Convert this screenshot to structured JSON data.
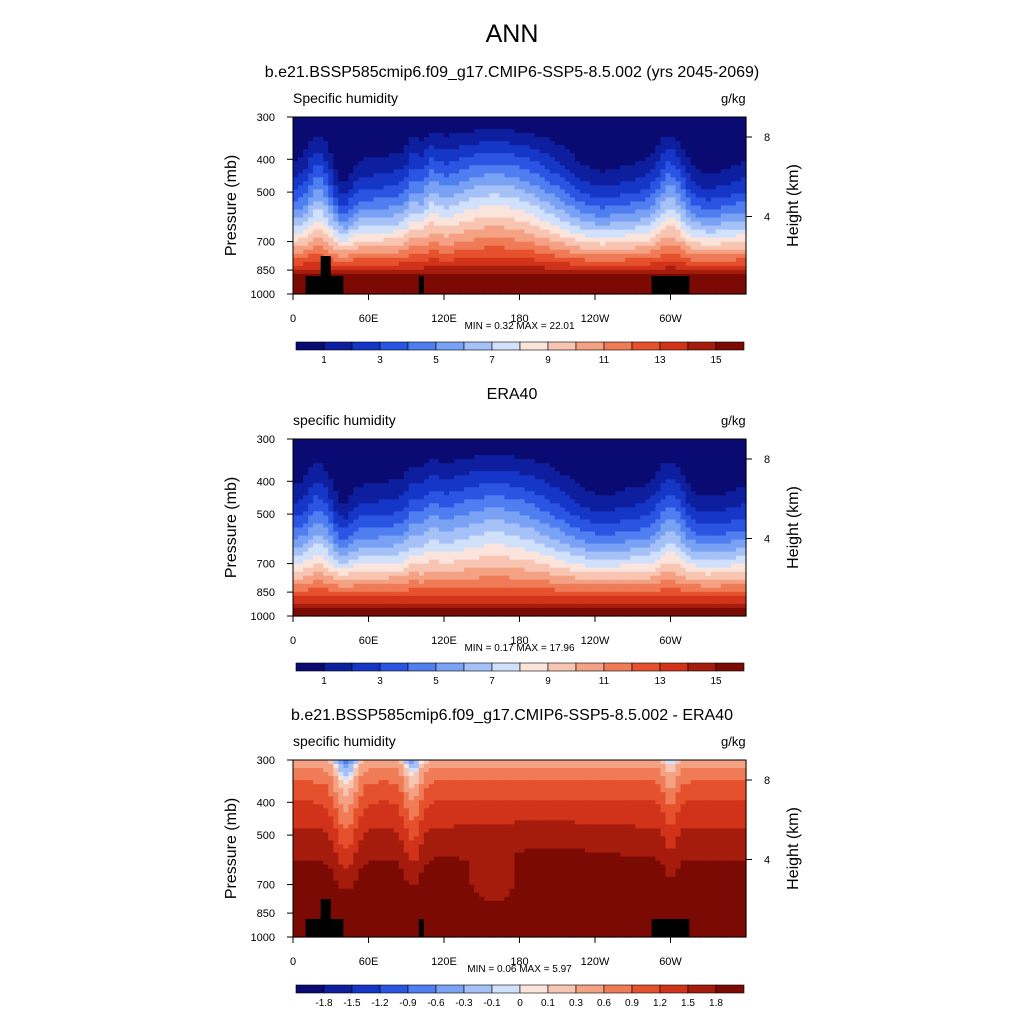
{
  "figure": {
    "title": "ANN",
    "colors": {
      "humidity_scale": [
        "#0a0a73",
        "#0d1f9e",
        "#1536c7",
        "#2a55e3",
        "#4f7ef0",
        "#7aa2f4",
        "#a5c1f8",
        "#d2e1fb",
        "#fbe4dc",
        "#f8c5b2",
        "#f4a184",
        "#f07b57",
        "#e6512d",
        "#d0331a",
        "#a61c0c",
        "#7a0a03"
      ],
      "diff_scale": [
        "#0a0a73",
        "#0d1f9e",
        "#1536c7",
        "#2a55e3",
        "#4f7ef0",
        "#7aa2f4",
        "#a5c1f8",
        "#d2e1fb",
        "#fbe4dc",
        "#f8c5b2",
        "#f4a184",
        "#f07b57",
        "#e6512d",
        "#d0331a",
        "#a61c0c",
        "#7a0a03"
      ],
      "missing": "#000000"
    }
  },
  "chart_data": [
    {
      "type": "heatmap",
      "title": "b.e21.BSSP585cmip6.f09_g17.CMIP6-SSP5-8.5.002 (yrs 2045-2069)",
      "left_string": "Specific humidity",
      "right_string": "g/kg",
      "ylabel": "Pressure (mb)",
      "y2label": "Height (km)",
      "x_ticks": [
        "0",
        "60E",
        "120E",
        "180",
        "120W",
        "60W"
      ],
      "x_tick_values": [
        0,
        60,
        120,
        180,
        240,
        300
      ],
      "xlim": [
        0,
        360
      ],
      "y_ticks": [
        "300",
        "400",
        "500",
        "700",
        "850",
        "1000"
      ],
      "y_tick_values": [
        300,
        400,
        500,
        700,
        850,
        1000
      ],
      "ylim": [
        300,
        1000
      ],
      "y_log_scale": true,
      "y2_ticks": [
        "8",
        "4"
      ],
      "y2_tick_values": [
        8,
        4
      ],
      "stats": "MIN =   0.32  MAX =  22.01",
      "min": 0.32,
      "max": 22.01,
      "colorbar_labels": [
        "1",
        "3",
        "5",
        "7",
        "9",
        "11",
        "13",
        "15"
      ],
      "contour_levels": [
        1,
        2,
        3,
        4,
        5,
        6,
        7,
        8,
        9,
        10,
        11,
        12,
        13,
        14,
        15
      ],
      "missing_data_regions_lon_range": [
        [
          10,
          40
        ],
        [
          100,
          104
        ],
        [
          285,
          315
        ]
      ]
    },
    {
      "type": "heatmap",
      "title": "ERA40",
      "left_string": "specific humidity",
      "right_string": "g/kg",
      "ylabel": "Pressure (mb)",
      "y2label": "Height (km)",
      "x_ticks": [
        "0",
        "60E",
        "120E",
        "180",
        "120W",
        "60W"
      ],
      "x_tick_values": [
        0,
        60,
        120,
        180,
        240,
        300
      ],
      "xlim": [
        0,
        360
      ],
      "y_ticks": [
        "300",
        "400",
        "500",
        "700",
        "850",
        "1000"
      ],
      "y_tick_values": [
        300,
        400,
        500,
        700,
        850,
        1000
      ],
      "ylim": [
        300,
        1000
      ],
      "y_log_scale": true,
      "y2_ticks": [
        "8",
        "4"
      ],
      "y2_tick_values": [
        8,
        4
      ],
      "stats": "MIN =   0.17  MAX =  17.96",
      "min": 0.17,
      "max": 17.96,
      "colorbar_labels": [
        "1",
        "3",
        "5",
        "7",
        "9",
        "11",
        "13",
        "15"
      ],
      "contour_levels": [
        1,
        2,
        3,
        4,
        5,
        6,
        7,
        8,
        9,
        10,
        11,
        12,
        13,
        14,
        15
      ]
    },
    {
      "type": "heatmap",
      "title": "b.e21.BSSP585cmip6.f09_g17.CMIP6-SSP5-8.5.002 - ERA40",
      "left_string": "specific humidity",
      "right_string": "g/kg",
      "ylabel": "Pressure (mb)",
      "y2label": "Height (km)",
      "x_ticks": [
        "0",
        "60E",
        "120E",
        "180",
        "120W",
        "60W"
      ],
      "x_tick_values": [
        0,
        60,
        120,
        180,
        240,
        300
      ],
      "xlim": [
        0,
        360
      ],
      "y_ticks": [
        "300",
        "400",
        "500",
        "700",
        "850",
        "1000"
      ],
      "y_tick_values": [
        300,
        400,
        500,
        700,
        850,
        1000
      ],
      "ylim": [
        300,
        1000
      ],
      "y_log_scale": true,
      "y2_ticks": [
        "8",
        "4"
      ],
      "y2_tick_values": [
        8,
        4
      ],
      "stats": "MIN =   0.06  MAX =   5.97",
      "min": 0.06,
      "max": 5.97,
      "colorbar_labels": [
        "-1.8",
        "-1.5",
        "-1.2",
        "-0.9",
        "-0.6",
        "-0.3",
        "-0.1",
        "0",
        "0.1",
        "0.3",
        "0.6",
        "0.9",
        "1.2",
        "1.5",
        "1.8"
      ],
      "contour_levels": [
        -1.8,
        -1.5,
        -1.2,
        -0.9,
        -0.6,
        -0.3,
        -0.1,
        0,
        0.1,
        0.3,
        0.6,
        0.9,
        1.2,
        1.5,
        1.8
      ],
      "missing_data_regions_lon_range": [
        [
          10,
          40
        ],
        [
          100,
          104
        ],
        [
          285,
          315
        ]
      ]
    }
  ]
}
